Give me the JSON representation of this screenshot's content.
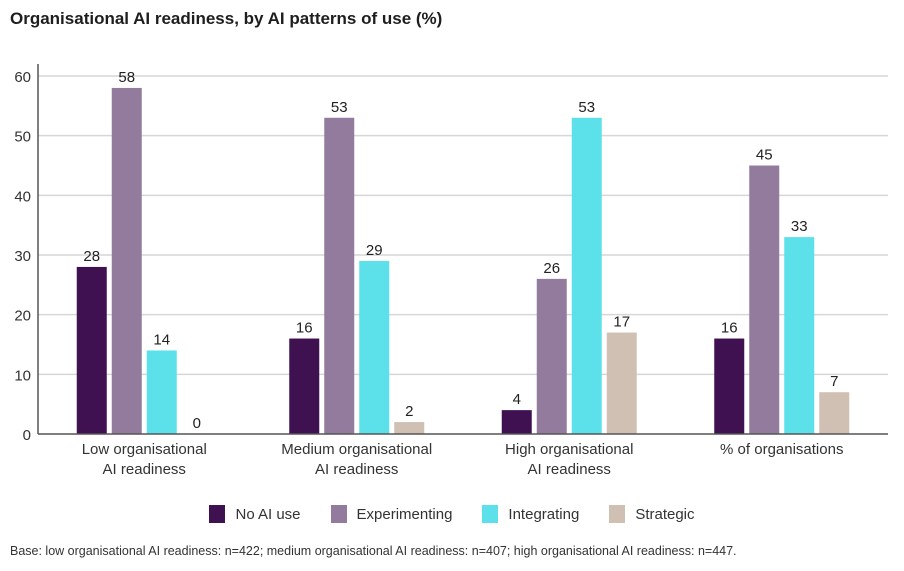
{
  "chart_data": {
    "type": "bar",
    "title": "Organisational AI readiness, by AI patterns of use (%)",
    "xlabel": "",
    "ylabel": "",
    "ylim": [
      0,
      60
    ],
    "yticks": [
      0,
      10,
      20,
      30,
      40,
      50,
      60
    ],
    "grid": true,
    "legend_position": "bottom",
    "categories": [
      [
        "Low organisational",
        "AI readiness"
      ],
      [
        "Medium organisational",
        "AI readiness"
      ],
      [
        "High organisational",
        "AI readiness"
      ],
      [
        "% of organisations"
      ]
    ],
    "series": [
      {
        "name": "No AI use",
        "color": "#3f1150",
        "values": [
          28,
          16,
          4,
          16
        ]
      },
      {
        "name": "Experimenting",
        "color": "#937b9e",
        "values": [
          58,
          53,
          26,
          45
        ]
      },
      {
        "name": "Integrating",
        "color": "#5ce0e9",
        "values": [
          14,
          29,
          53,
          33
        ]
      },
      {
        "name": "Strategic",
        "color": "#cfc0b3",
        "values": [
          0,
          2,
          17,
          7
        ]
      }
    ],
    "footnote": "Base: low organisational AI readiness: n=422; medium organisational AI readiness: n=407; high organisational AI readiness: n=447."
  }
}
